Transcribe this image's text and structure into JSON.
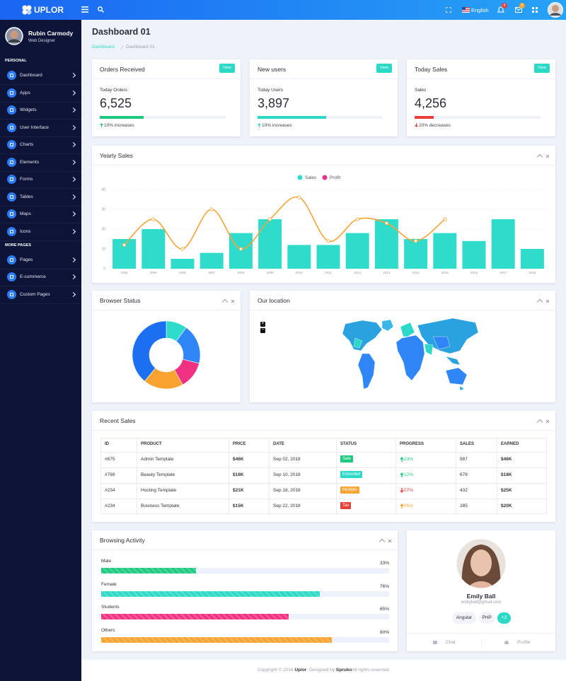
{
  "topbar": {
    "brand": "UPLOR",
    "language": "English",
    "badges": [
      "4",
      "5"
    ]
  },
  "sidebar": {
    "user": {
      "name": "Rubin Carmody",
      "role": "Web Designer"
    },
    "sections": [
      {
        "title": "PERSONAL",
        "items": [
          "Dashboard",
          "Apps",
          "Widgets",
          "User Interface",
          "Charts",
          "Elements",
          "Forms",
          "Tables",
          "Maps",
          "Icons"
        ]
      },
      {
        "title": "MORE PAGES",
        "items": [
          "Pages",
          "E-commerce",
          "Custom Pages"
        ]
      }
    ]
  },
  "page": {
    "title": "Dashboard 01",
    "breadcrumb": [
      "Dashboard",
      "Dashboard 01"
    ]
  },
  "stats": [
    {
      "title": "Orders Received",
      "button": "View",
      "label": "Today Orders",
      "value": "6,525",
      "progress": 35,
      "color": "#1cc97f",
      "trend": "up",
      "note": "10% increases"
    },
    {
      "title": "New users",
      "button": "View",
      "label": "Today Users",
      "value": "3,897",
      "progress": 55,
      "color": "#2bd9c6",
      "trend": "up",
      "note": "10% increases"
    },
    {
      "title": "Today Sales",
      "button": "View",
      "label": "Sales",
      "value": "4,256",
      "progress": 15,
      "color": "#e7403a",
      "trend": "down",
      "note": "20% decreases"
    }
  ],
  "yearly_sales": {
    "title": "Yearly Sales",
    "chart_data": {
      "type": "bar-line",
      "categories": [
        "2004",
        "2005",
        "2006",
        "2007",
        "2008",
        "2009",
        "2010",
        "2011",
        "2012",
        "2013",
        "2014",
        "2015",
        "2016",
        "2017",
        "2018"
      ],
      "series": [
        {
          "name": "Sales",
          "type": "bar",
          "color": "#2fdccb",
          "values": [
            15,
            20,
            5,
            8,
            18,
            25,
            12,
            12,
            18,
            25,
            15,
            18,
            14,
            25,
            10
          ]
        },
        {
          "name": "Profit",
          "type": "line",
          "color": "#f7a334",
          "legend_color": "#e8338c",
          "values": [
            12,
            25,
            10,
            30,
            10,
            25,
            36,
            14,
            25,
            23,
            14,
            25,
            null,
            null,
            null
          ]
        }
      ],
      "ylim": [
        0,
        40
      ],
      "yticks": [
        0,
        10,
        20,
        30,
        40
      ],
      "grid": true,
      "legend": "top"
    }
  },
  "browser_status": {
    "title": "Browser Status",
    "chart_data": {
      "type": "donut",
      "values": [
        10,
        19,
        13,
        19,
        39
      ],
      "colors": [
        "#2fdccb",
        "#2f86f6",
        "#f0317f",
        "#f8a22f",
        "#1d6ff2"
      ]
    }
  },
  "location": {
    "title": "Our location",
    "zoom": [
      "+",
      "−"
    ]
  },
  "recent_sales": {
    "title": "Recent Sales",
    "table": {
      "header": [
        "ID",
        "PRODUCT",
        "PRICE",
        "DATE",
        "STATUS",
        "PROGRESS",
        "SALES",
        "EARNED"
      ],
      "rows": [
        [
          "#675",
          "Admin Template",
          "$46K",
          "Sep 02, 2018",
          "Sale",
          "23%",
          "987",
          "$46K"
        ],
        [
          "#789",
          "Beauty Template",
          "$18K",
          "Sep 10, 2018",
          "Extended",
          "12%",
          "678",
          "$18K"
        ],
        [
          "#234",
          "Hosting Template",
          "$21K",
          "Sep 18, 2018",
          "Multiple",
          "07%",
          "432",
          "$25K"
        ],
        [
          "#234",
          "Business Template",
          "$15K",
          "Sep 22, 2018",
          "Tax",
          "05%",
          "285",
          "$20K"
        ]
      ],
      "status_colors": [
        "#1cc97f",
        "#2bd9c6",
        "#f8a22f",
        "#e7403a"
      ],
      "trends": [
        "up",
        "up",
        "down",
        "up"
      ],
      "trend_colors": [
        "#1cc97f",
        "#1cc97f",
        "#e7403a",
        "#f8a22f"
      ]
    }
  },
  "browsing_activity": {
    "title": "Browsing Activity",
    "chart_data": {
      "type": "progress",
      "categories": [
        "Male",
        "Female",
        "Students",
        "Others"
      ],
      "values": [
        33,
        76,
        65,
        80
      ],
      "value_labels": [
        "33%",
        "76%",
        "65%",
        "80%"
      ],
      "colors": [
        "#1cc97f",
        "#2bd9c6",
        "#f0317f",
        "#f8a22f"
      ],
      "xlim": [
        0,
        100
      ]
    }
  },
  "profile": {
    "name": "Emily Ball",
    "email": "emilyball@gmail.com",
    "tags": [
      "Angular",
      "PHP",
      "+2"
    ],
    "actions": [
      "Chat",
      "Profile"
    ]
  },
  "footer": {
    "parts": [
      "Copyright © 2018 ",
      "Uplor",
      ". Designed by ",
      "Spruko",
      "All rights reserved."
    ]
  }
}
